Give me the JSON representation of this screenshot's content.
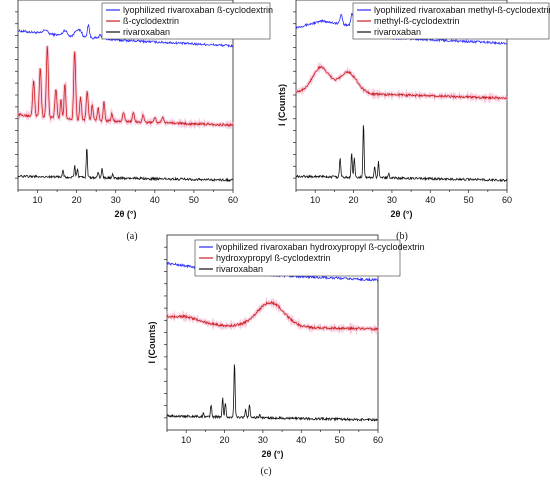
{
  "chart_data": [
    {
      "type": "line",
      "panel_label": "(a)",
      "xlabel": "2θ (°)",
      "ylabel": "",
      "xlim": [
        5,
        60
      ],
      "xticks": [
        10,
        20,
        30,
        40,
        50,
        60
      ],
      "legend_position": "top-right",
      "series": [
        {
          "name": "lyophilized rivaroxaban ß-cyclodextrin",
          "color": "#2b2bff",
          "offset": 2.0,
          "baseline": [
            [
              5,
              0.28
            ],
            [
              15,
              0.22
            ],
            [
              30,
              0.14
            ],
            [
              60,
              0.05
            ]
          ],
          "peaks": [
            [
              12,
              0.06,
              0.5
            ],
            [
              17,
              0.08,
              0.5
            ],
            [
              20,
              0.1,
              0.5
            ],
            [
              21,
              0.08,
              0.4
            ],
            [
              23,
              0.2,
              0.25
            ],
            [
              26,
              0.05,
              0.3
            ],
            [
              27,
              0.06,
              0.3
            ]
          ]
        },
        {
          "name": "ß-cyclodextrin",
          "color": "#cc2222",
          "offset": 0.8,
          "baseline": [
            [
              5,
              0.2
            ],
            [
              20,
              0.12
            ],
            [
              60,
              0.04
            ]
          ],
          "peaks": [
            [
              9,
              0.55,
              0.25
            ],
            [
              10.7,
              0.75,
              0.25
            ],
            [
              12.5,
              1.1,
              0.25
            ],
            [
              14.7,
              0.45,
              0.25
            ],
            [
              16,
              0.3,
              0.2
            ],
            [
              17,
              0.55,
              0.22
            ],
            [
              19.5,
              1.05,
              0.25
            ],
            [
              21,
              0.35,
              0.22
            ],
            [
              22.7,
              0.45,
              0.25
            ],
            [
              24,
              0.25,
              0.2
            ],
            [
              25.5,
              0.2,
              0.2
            ],
            [
              27,
              0.3,
              0.2
            ],
            [
              29,
              0.12,
              0.2
            ],
            [
              32,
              0.12,
              0.25
            ],
            [
              34.5,
              0.14,
              0.25
            ],
            [
              37,
              0.1,
              0.25
            ],
            [
              40,
              0.08,
              0.25
            ],
            [
              42,
              0.08,
              0.25
            ]
          ]
        },
        {
          "name": "rivaroxaban",
          "color": "#111111",
          "offset": 0.0,
          "baseline": [
            [
              5,
              0.06
            ],
            [
              60,
              0.0
            ]
          ],
          "peaks": [
            [
              16.5,
              0.12,
              0.15
            ],
            [
              19.5,
              0.18,
              0.15
            ],
            [
              20.2,
              0.14,
              0.15
            ],
            [
              22.6,
              0.48,
              0.15
            ],
            [
              25.5,
              0.1,
              0.15
            ],
            [
              26.5,
              0.14,
              0.15
            ],
            [
              29.2,
              0.05,
              0.15
            ]
          ]
        }
      ]
    },
    {
      "type": "line",
      "panel_label": "(b)",
      "xlabel": "2θ (°)",
      "ylabel": "I (Counts)",
      "xlim": [
        5,
        60
      ],
      "xticks": [
        10,
        20,
        30,
        40,
        50,
        60
      ],
      "legend_position": "top-right",
      "series": [
        {
          "name": "lyophilized rivaroxaban methyl-ß-cyclodextrin",
          "color": "#2b2bff",
          "offset": 2.05,
          "baseline": [
            [
              5,
              0.28
            ],
            [
              12,
              0.38
            ],
            [
              20,
              0.3
            ],
            [
              30,
              0.12
            ],
            [
              60,
              0.04
            ]
          ],
          "peaks": [
            [
              16.8,
              0.15,
              0.3
            ],
            [
              19.6,
              0.18,
              0.3
            ],
            [
              20.4,
              0.14,
              0.3
            ],
            [
              22.8,
              0.38,
              0.2
            ],
            [
              26.5,
              0.12,
              0.25
            ]
          ]
        },
        {
          "name": "methyl-ß-cyclodextrin",
          "color": "#cc2222",
          "offset": 1.25,
          "baseline": [
            [
              5,
              0.1
            ],
            [
              60,
              0.0
            ]
          ],
          "peaks": [
            [
              11.5,
              0.38,
              2.2
            ],
            [
              18.5,
              0.32,
              2.3
            ]
          ]
        },
        {
          "name": "rivaroxaban",
          "color": "#111111",
          "offset": 0.0,
          "baseline": [
            [
              5,
              0.06
            ],
            [
              60,
              0.0
            ]
          ],
          "peaks": [
            [
              16.5,
              0.3,
              0.15
            ],
            [
              19.5,
              0.38,
              0.15
            ],
            [
              20.2,
              0.3,
              0.15
            ],
            [
              22.6,
              0.85,
              0.15
            ],
            [
              25.5,
              0.18,
              0.15
            ],
            [
              26.5,
              0.26,
              0.15
            ],
            [
              29.2,
              0.06,
              0.15
            ]
          ]
        }
      ]
    },
    {
      "type": "line",
      "panel_label": "(c)",
      "xlabel": "2θ (°)",
      "ylabel": "I (Counts)",
      "xlim": [
        5,
        60
      ],
      "xticks": [
        10,
        20,
        30,
        40,
        50,
        60
      ],
      "legend_position": "top",
      "series": [
        {
          "name": "lyophilized rivaroxaban hydroxypropyl ß-cyclodextrin",
          "color": "#2b2bff",
          "offset": 2.05,
          "baseline": [
            [
              5,
              0.28
            ],
            [
              15,
              0.2
            ],
            [
              25,
              0.12
            ],
            [
              60,
              0.03
            ]
          ],
          "peaks": [
            [
              16.8,
              0.14,
              0.3
            ],
            [
              19.6,
              0.16,
              0.3
            ],
            [
              20.4,
              0.12,
              0.3
            ],
            [
              22.8,
              0.34,
              0.2
            ],
            [
              26.5,
              0.08,
              0.25
            ],
            [
              27.2,
              0.1,
              0.25
            ]
          ]
        },
        {
          "name": "hydroxypropyl ß-cyclodextrin",
          "color": "#cc2222",
          "offset": 1.35,
          "baseline": [
            [
              5,
              0.18
            ],
            [
              20,
              0.05
            ],
            [
              60,
              0.0
            ]
          ],
          "peaks": [
            [
              10,
              0.05,
              2.5
            ],
            [
              32,
              0.36,
              3.5
            ]
          ]
        },
        {
          "name": "rivaroxaban",
          "color": "#111111",
          "offset": 0.0,
          "baseline": [
            [
              5,
              0.06
            ],
            [
              60,
              0.0
            ]
          ],
          "peaks": [
            [
              14.5,
              0.05,
              0.15
            ],
            [
              16.5,
              0.18,
              0.15
            ],
            [
              19.5,
              0.28,
              0.15
            ],
            [
              20.2,
              0.22,
              0.15
            ],
            [
              22.6,
              0.82,
              0.15
            ],
            [
              25.5,
              0.12,
              0.15
            ],
            [
              26.5,
              0.2,
              0.15
            ],
            [
              29.2,
              0.04,
              0.15
            ]
          ]
        }
      ]
    }
  ]
}
